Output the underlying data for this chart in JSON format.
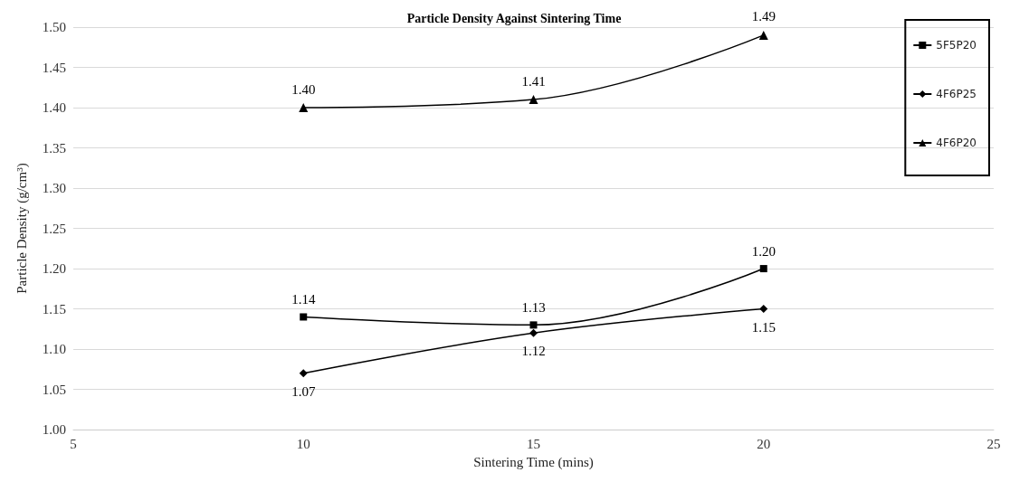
{
  "chart_data": {
    "type": "line",
    "title": "Particle Density Against Sintering Time",
    "xlabel": "Sintering Time (mins)",
    "ylabel": "Particle Density (g/cm³)",
    "x": [
      10,
      15,
      20
    ],
    "series": [
      {
        "name": "5F5P20",
        "color": "#000000",
        "marker": "square",
        "values": [
          1.14,
          1.13,
          1.2
        ],
        "value_labels": [
          "1.14",
          "1.13",
          "1.20"
        ]
      },
      {
        "name": "4F6P25",
        "color": "#000000",
        "marker": "diamond",
        "values": [
          1.07,
          1.12,
          1.15
        ],
        "value_labels": [
          "1.07",
          "1.12",
          "1.15"
        ]
      },
      {
        "name": "4F6P20",
        "color": "#000000",
        "marker": "triangle",
        "values": [
          1.4,
          1.41,
          1.49
        ],
        "value_labels": [
          "1.40",
          "1.41",
          "1.49"
        ]
      }
    ],
    "xlim": [
      5,
      25
    ],
    "xticks": [
      5,
      10,
      15,
      20,
      25
    ],
    "ylim": [
      1,
      1.5
    ],
    "yticks": [
      {
        "value": 1,
        "label": "1.00"
      },
      {
        "value": 1.05,
        "label": "1.05"
      },
      {
        "value": 1.1,
        "label": "1.10"
      },
      {
        "value": 1.15,
        "label": "1.15"
      },
      {
        "value": 1.2,
        "label": "1.20"
      },
      {
        "value": 1.25,
        "label": "1.25"
      },
      {
        "value": 1.3,
        "label": "1.30"
      },
      {
        "value": 1.35,
        "label": "1.35"
      },
      {
        "value": 1.4,
        "label": "1.40"
      },
      {
        "value": 1.45,
        "label": "1.45"
      },
      {
        "value": 1.5,
        "label": "1.50"
      }
    ],
    "grid": "y",
    "legend": "top right",
    "line_style": "solid"
  }
}
